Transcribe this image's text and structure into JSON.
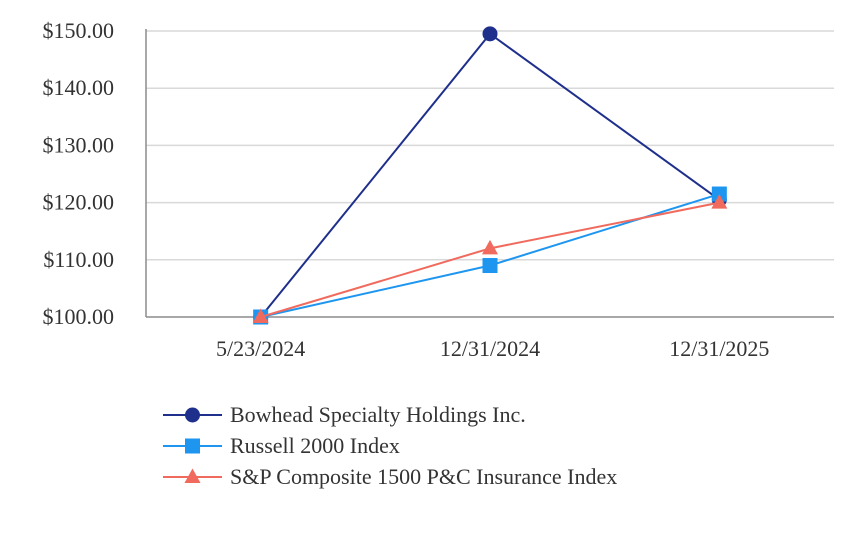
{
  "chart_data": {
    "type": "line",
    "title": "",
    "xlabel": "",
    "ylabel": "",
    "categories": [
      "5/23/2024",
      "12/31/2024",
      "12/31/2025"
    ],
    "ylim": [
      100,
      150
    ],
    "yticks": [
      100,
      110,
      120,
      130,
      140,
      150
    ],
    "ytick_labels": [
      "$100.00",
      "$110.00",
      "$120.00",
      "$130.00",
      "$140.00",
      "$150.00"
    ],
    "grid": true,
    "legend_position": "bottom",
    "series": [
      {
        "name": "Bowhead Specialty Holdings Inc.",
        "values": [
          100,
          149.5,
          120.5
        ],
        "color": "#1f2f8c",
        "marker": "circle"
      },
      {
        "name": "Russell 2000 Index",
        "values": [
          100,
          109,
          121.5
        ],
        "color": "#1e96f0",
        "marker": "square"
      },
      {
        "name": "S&P Composite 1500 P&C Insurance Index",
        "values": [
          100,
          112,
          120
        ],
        "color": "#f06a5e",
        "marker": "triangle"
      }
    ]
  }
}
